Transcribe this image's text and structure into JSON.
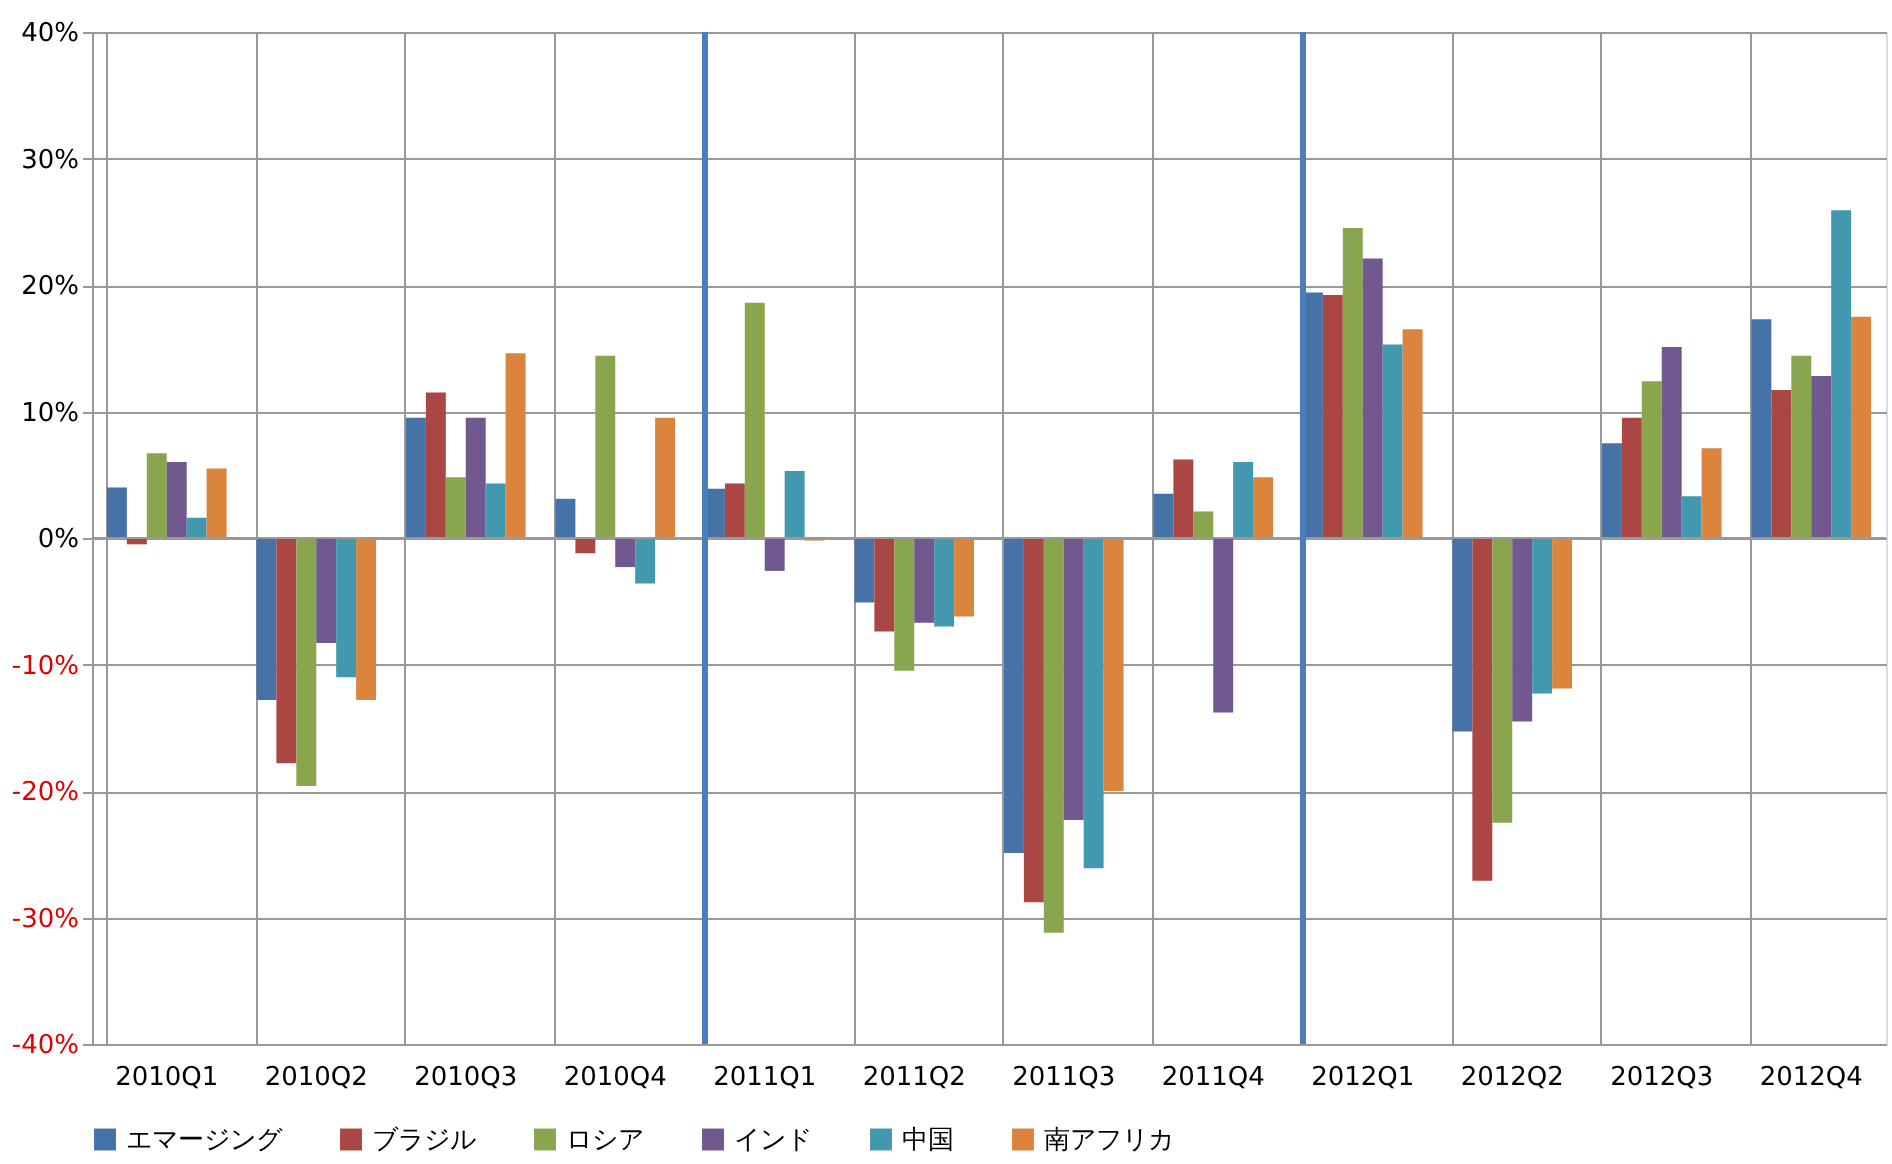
{
  "chart_data": {
    "type": "bar",
    "categories": [
      "2010Q1",
      "2010Q2",
      "2010Q3",
      "2010Q4",
      "2011Q1",
      "2011Q2",
      "2011Q3",
      "2011Q4",
      "2012Q1",
      "2012Q2",
      "2012Q3",
      "2012Q4"
    ],
    "series": [
      {
        "name": "エマージング",
        "color": "#4572a7",
        "values": [
          4.0,
          -12.8,
          9.5,
          3.1,
          3.9,
          -5.1,
          -24.9,
          3.5,
          19.4,
          -15.3,
          7.5,
          17.3
        ]
      },
      {
        "name": "ブラジル",
        "color": "#aa4643",
        "values": [
          -0.5,
          -17.8,
          11.5,
          -1.2,
          4.3,
          -7.4,
          -28.8,
          6.2,
          19.2,
          -27.1,
          9.5,
          11.7
        ]
      },
      {
        "name": "ロシア",
        "color": "#89a54e",
        "values": [
          6.7,
          -19.6,
          4.8,
          14.4,
          18.6,
          -10.5,
          -31.2,
          2.1,
          24.5,
          -22.5,
          12.4,
          14.4
        ]
      },
      {
        "name": "インド",
        "color": "#71588f",
        "values": [
          6.0,
          -8.3,
          9.5,
          -2.3,
          -2.6,
          -6.7,
          -22.3,
          -13.8,
          22.1,
          -14.5,
          15.1,
          12.8
        ]
      },
      {
        "name": "中国",
        "color": "#4198af",
        "values": [
          1.6,
          -11.0,
          4.3,
          -3.6,
          5.3,
          -7.0,
          -26.1,
          6.0,
          15.3,
          -12.3,
          3.3,
          25.9
        ]
      },
      {
        "name": "南アフリカ",
        "color": "#db843d",
        "values": [
          5.5,
          -12.8,
          14.6,
          9.5,
          -0.2,
          -6.2,
          -20.0,
          4.8,
          16.5,
          -11.9,
          7.1,
          17.5
        ]
      }
    ],
    "ylim": [
      -40,
      40
    ],
    "yticks": [
      {
        "value": -40,
        "label": "-40%"
      },
      {
        "value": -30,
        "label": "-30%"
      },
      {
        "value": -20,
        "label": "-20%"
      },
      {
        "value": -10,
        "label": "-10%"
      },
      {
        "value": 0,
        "label": "0%"
      },
      {
        "value": 10,
        "label": "10%"
      },
      {
        "value": 20,
        "label": "20%"
      },
      {
        "value": 30,
        "label": "30%"
      },
      {
        "value": 40,
        "label": "40%"
      }
    ],
    "ref_lines": [
      {
        "axis": "x",
        "value": "2011Q1",
        "color": "#4a7ebb"
      },
      {
        "axis": "x",
        "value": "2012Q1",
        "color": "#4a7ebb"
      }
    ],
    "grid": true,
    "legend": "bottom"
  }
}
